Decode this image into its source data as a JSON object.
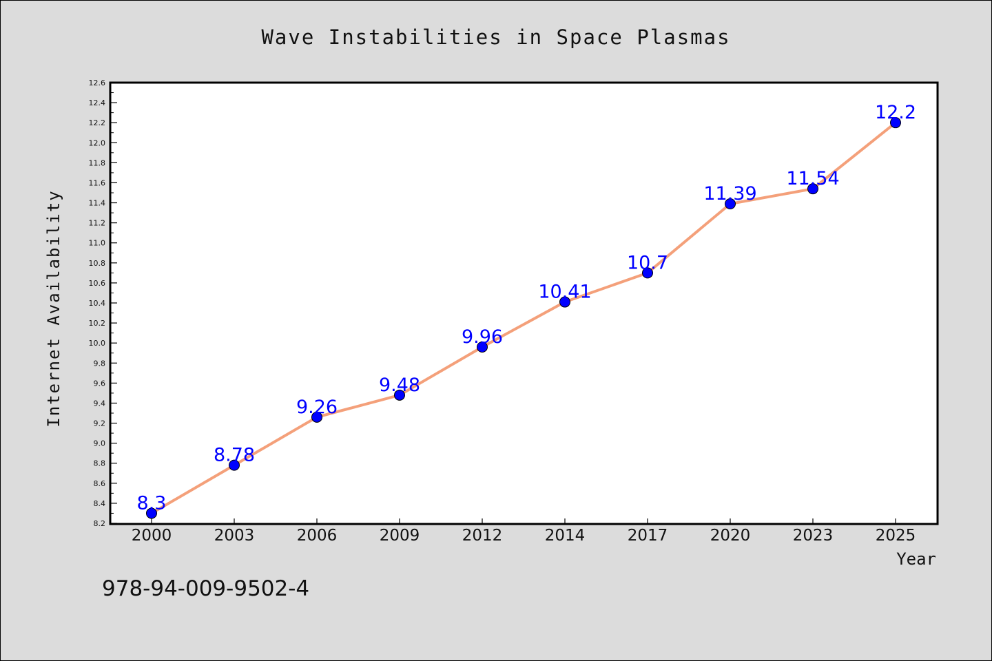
{
  "chart_data": {
    "type": "line",
    "title": "Wave Instabilities in Space Plasmas",
    "xlabel": "Year",
    "ylabel": "Internet Availability",
    "categories": [
      "2000",
      "2003",
      "2006",
      "2009",
      "2012",
      "2014",
      "2017",
      "2020",
      "2023",
      "2025"
    ],
    "series": [
      {
        "values": [
          8.3,
          8.78,
          9.26,
          9.48,
          9.96,
          10.41,
          10.7,
          11.39,
          11.54,
          12.2
        ],
        "data_labels": [
          "8.3",
          "8.78",
          "9.26",
          "9.48",
          "9.96",
          "10.41",
          "10.7",
          "11.39",
          "11.54",
          "12.2"
        ]
      }
    ],
    "ylim": [
      8.2,
      12.6
    ],
    "yticks": [
      "8.2",
      "8.4",
      "8.6",
      "8.8",
      "9.0",
      "9.2",
      "9.4",
      "9.6",
      "9.8",
      "10.0",
      "10.2",
      "10.4",
      "10.6",
      "10.8",
      "11.0",
      "11.2",
      "11.4",
      "11.6",
      "11.8",
      "12.0",
      "12.2",
      "12.4",
      "12.6"
    ],
    "grid": false,
    "legend": "none",
    "colors": {
      "line": "#f4a07a",
      "marker": "#0000ff",
      "data_label": "#0000ff",
      "plot_background": "#ffffff",
      "figure_background": "#dcdcdc"
    }
  },
  "annotation": "978-94-009-9502-4"
}
